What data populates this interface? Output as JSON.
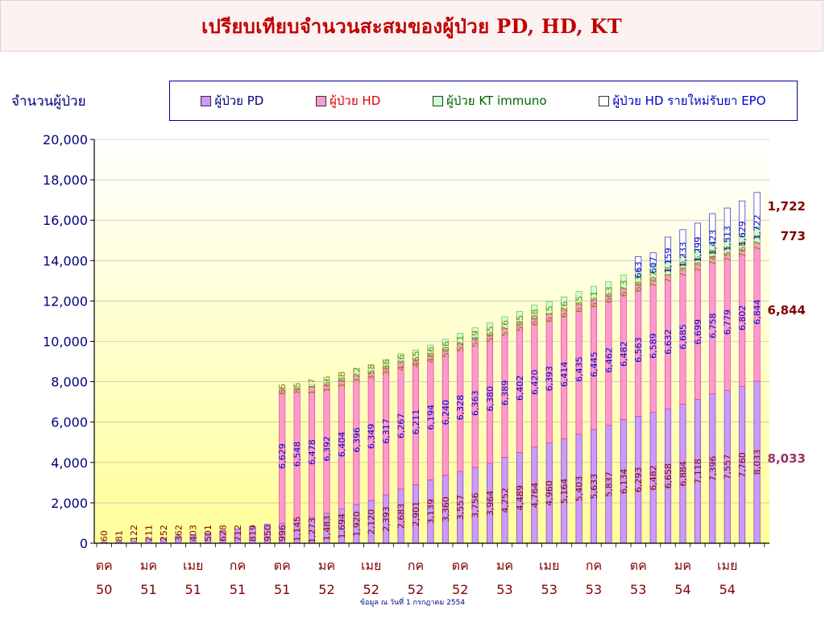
{
  "title": "เปรียบเทียบจำนวนสะสมของผู้ป่วย PD, HD, KT",
  "footnote": "ข้อมูล ณ วันที่ 1 กรกฎาคม  2554",
  "chart_data": {
    "type": "bar",
    "stacked": true,
    "ylabel": "จำนวนผู้ป่วย",
    "ylim": [
      0,
      20000
    ],
    "yticks": [
      "0",
      "2,000",
      "4,000",
      "6,000",
      "8,000",
      "10,000",
      "12,000",
      "14,000",
      "16,000",
      "18,000",
      "20,000"
    ],
    "legend_position": "top-right",
    "background": "gradient white to light yellow",
    "xtick_labels": [
      {
        "month": "ตค",
        "year": "50",
        "bar_index": 0
      },
      {
        "month": "มค",
        "year": "51",
        "bar_index": 3
      },
      {
        "month": "เมย",
        "year": "51",
        "bar_index": 6
      },
      {
        "month": "กค",
        "year": "51",
        "bar_index": 9
      },
      {
        "month": "ตค",
        "year": "51",
        "bar_index": 12
      },
      {
        "month": "มค",
        "year": "52",
        "bar_index": 15
      },
      {
        "month": "เมย",
        "year": "52",
        "bar_index": 18
      },
      {
        "month": "กค",
        "year": "52",
        "bar_index": 21
      },
      {
        "month": "ตค",
        "year": "52",
        "bar_index": 24
      },
      {
        "month": "มค",
        "year": "53",
        "bar_index": 27
      },
      {
        "month": "เมย",
        "year": "53",
        "bar_index": 30
      },
      {
        "month": "กค",
        "year": "53",
        "bar_index": 33
      },
      {
        "month": "ตค",
        "year": "53",
        "bar_index": 36
      },
      {
        "month": "มค",
        "year": "54",
        "bar_index": 39
      },
      {
        "month": "เมย",
        "year": "54",
        "bar_index": 42
      }
    ],
    "series": [
      {
        "name": "ผู้ป่วย PD",
        "color": "#cc99ff",
        "label_color": "#800000",
        "values": [
          60,
          81,
          122,
          211,
          252,
          362,
          403,
          501,
          628,
          712,
          819,
          950,
          996,
          1145,
          1273,
          1483,
          1694,
          1920,
          2120,
          2393,
          2683,
          2901,
          3139,
          3360,
          3557,
          3756,
          3964,
          4252,
          4489,
          4764,
          4960,
          5164,
          5403,
          5633,
          5837,
          6134,
          6293,
          6482,
          6658,
          6884,
          7118,
          7396,
          7557,
          7760,
          8033
        ]
      },
      {
        "name": "ผู้ป่วย HD",
        "color": "#ff99cc",
        "label_color": "#0000cc",
        "values": [
          0,
          0,
          0,
          0,
          0,
          0,
          0,
          0,
          0,
          0,
          0,
          0,
          6629,
          6548,
          6478,
          6392,
          6404,
          6396,
          6349,
          6317,
          6267,
          6211,
          6194,
          6240,
          6328,
          6363,
          6380,
          6389,
          6402,
          6420,
          6393,
          6414,
          6435,
          6445,
          6462,
          6482,
          6563,
          6589,
          6632,
          6685,
          6699,
          6758,
          6779,
          6802,
          6844
        ]
      },
      {
        "name": "ผู้ป่วย KT immuno",
        "color": "#ccffcc",
        "label_color": "#808000",
        "values": [
          0,
          0,
          0,
          0,
          0,
          0,
          0,
          0,
          0,
          0,
          0,
          0,
          66,
          85,
          117,
          166,
          188,
          322,
          358,
          386,
          436,
          465,
          486,
          506,
          521,
          549,
          565,
          576,
          595,
          608,
          615,
          626,
          635,
          651,
          663,
          673,
          683,
          707,
          718,
          730,
          736,
          748,
          755,
          766,
          773
        ]
      },
      {
        "name": "ผู้ป่วย HD รายใหม่รับยา EPO",
        "color": "#ffffff",
        "label_color": "#0000cc",
        "values": [
          0,
          0,
          0,
          0,
          0,
          0,
          0,
          0,
          0,
          0,
          0,
          0,
          0,
          0,
          0,
          0,
          0,
          0,
          0,
          0,
          0,
          0,
          0,
          0,
          0,
          0,
          0,
          0,
          0,
          0,
          0,
          0,
          0,
          0,
          0,
          0,
          663,
          607,
          1159,
          1233,
          1299,
          1423,
          1513,
          1629,
          1722
        ]
      }
    ],
    "final_callouts": [
      {
        "series_index": 3,
        "text": "1,722",
        "color": "#800000"
      },
      {
        "series_index": 2,
        "text": "773",
        "color": "#800000"
      },
      {
        "series_index": 1,
        "text": "6,844",
        "color": "#800000"
      },
      {
        "series_index": 0,
        "text": "8,033",
        "color": "#993366"
      }
    ]
  }
}
